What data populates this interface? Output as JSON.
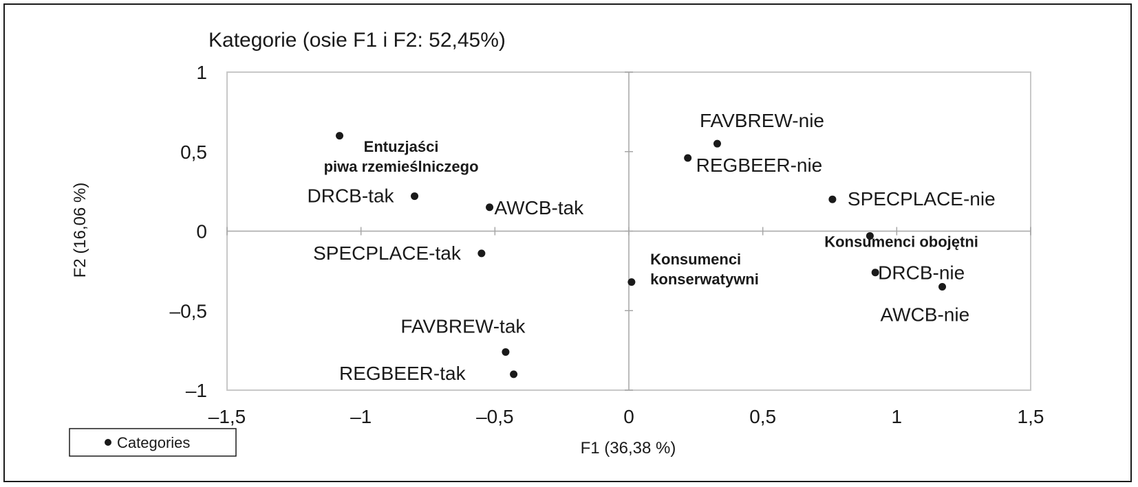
{
  "chart_data": {
    "type": "scatter",
    "title": "Kategorie (osie F1 i F2: 52,45%)",
    "xlabel": "F1 (36,38 %)",
    "ylabel": "F2 (16,06 %)",
    "xlim": [
      -1.5,
      1.5
    ],
    "ylim": [
      -1,
      1
    ],
    "x_ticks": [
      -1.5,
      -1,
      -0.5,
      0,
      0.5,
      1,
      1.5
    ],
    "x_tick_labels": [
      "–1,5",
      "–1",
      "–0,5",
      "0",
      "0,5",
      "1",
      "1,5"
    ],
    "y_ticks": [
      1,
      0.5,
      0,
      -0.5,
      -1
    ],
    "y_tick_labels": [
      "1",
      "0,5",
      "0",
      "–0,5",
      "–1"
    ],
    "grid": false,
    "legend": {
      "position": "bottom-left",
      "entries": [
        "Categories"
      ]
    },
    "series": [
      {
        "name": "Categories",
        "color": "#1a1a1a",
        "points": [
          {
            "label": "",
            "x": -1.08,
            "y": 0.6
          },
          {
            "label": "DRCB-tak",
            "x": -0.8,
            "y": 0.22
          },
          {
            "label": "AWCB-tak",
            "x": -0.52,
            "y": 0.15
          },
          {
            "label": "SPECPLACE-tak",
            "x": -0.55,
            "y": -0.14
          },
          {
            "label": "FAVBREW-tak",
            "x": -0.46,
            "y": -0.76
          },
          {
            "label": "REGBEER-tak",
            "x": -0.43,
            "y": -0.9
          },
          {
            "label": "",
            "x": 0.01,
            "y": -0.32
          },
          {
            "label": "FAVBREW-nie",
            "x": 0.33,
            "y": 0.55
          },
          {
            "label": "REGBEER-nie",
            "x": 0.22,
            "y": 0.46
          },
          {
            "label": "SPECPLACE-nie",
            "x": 0.76,
            "y": 0.2
          },
          {
            "label": "",
            "x": 0.9,
            "y": -0.03
          },
          {
            "label": "DRCB-nie",
            "x": 0.92,
            "y": -0.26
          },
          {
            "label": "AWCB-nie",
            "x": 1.17,
            "y": -0.35
          }
        ]
      }
    ],
    "group_labels": [
      {
        "lines": [
          "Entuzjaści",
          "piwa rzemieślniczego"
        ]
      },
      {
        "lines": [
          "Konsumenci",
          "konserwatywni"
        ]
      },
      {
        "lines": [
          "Konsumenci obojętni"
        ]
      }
    ]
  }
}
